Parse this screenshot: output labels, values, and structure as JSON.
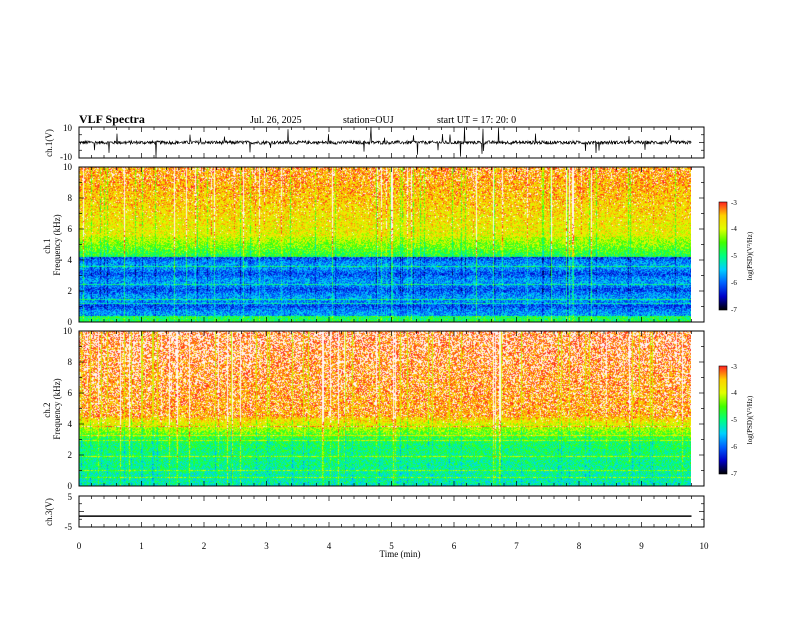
{
  "header": {
    "title": "VLF Spectra",
    "date": "Jul. 26, 2025",
    "station": "station=OUJ",
    "start_ut": "start UT =  17: 20: 0"
  },
  "chart_data": [
    {
      "name": "ch1-waveform",
      "type": "line",
      "ylabel": "ch.1(V)",
      "ylim": [
        -10,
        10
      ],
      "ytick_labels": [
        "10",
        "-10"
      ],
      "xlim": [
        0,
        10
      ],
      "trace_end_min": 9.8,
      "baseline": 0,
      "color": "#000000"
    },
    {
      "name": "ch1-spectrogram",
      "type": "heatmap",
      "ylabel": "ch.1\nFrequency (kHz)",
      "ylim": [
        0,
        10
      ],
      "ytick_labels": [
        "0",
        "2",
        "4",
        "6",
        "8",
        "10"
      ],
      "xlim": [
        0,
        10
      ],
      "data_end_min": 9.8,
      "colorbar": {
        "label": "log(PSD)(V²/Hz)",
        "range": [
          -7,
          -3
        ],
        "tick_labels": [
          "-3",
          "-4",
          "-5",
          "-6",
          "-7"
        ]
      }
    },
    {
      "name": "ch2-spectrogram",
      "type": "heatmap",
      "ylabel": "ch.2\nFrequency (kHz)",
      "ylim": [
        0,
        10
      ],
      "ytick_labels": [
        "0",
        "2",
        "4",
        "6",
        "8",
        "10"
      ],
      "xlim": [
        0,
        10
      ],
      "data_end_min": 9.8,
      "colorbar": {
        "label": "log(PSD)(V²/Hz)",
        "range": [
          -7,
          -3
        ],
        "tick_labels": [
          "-3",
          "-4",
          "-5",
          "-6",
          "-7"
        ]
      }
    },
    {
      "name": "ch3-waveform",
      "type": "line",
      "ylabel": "ch.3(V)",
      "ylim": [
        -5,
        5
      ],
      "ytick_labels": [
        "5",
        "-5"
      ],
      "xlim": [
        0,
        10
      ],
      "trace_end_min": 9.8,
      "constant_value": -1.5,
      "color": "#000000"
    }
  ],
  "xaxis": {
    "label": "Time (min)",
    "tick_labels": [
      "0",
      "1",
      "2",
      "3",
      "4",
      "5",
      "6",
      "7",
      "8",
      "9",
      "10"
    ]
  },
  "colormap": [
    "#000000",
    "#0000c8",
    "#0060ff",
    "#00d0ff",
    "#00ff80",
    "#40ff00",
    "#e0ff00",
    "#ffd000",
    "#ff2020",
    "#ffffff"
  ]
}
